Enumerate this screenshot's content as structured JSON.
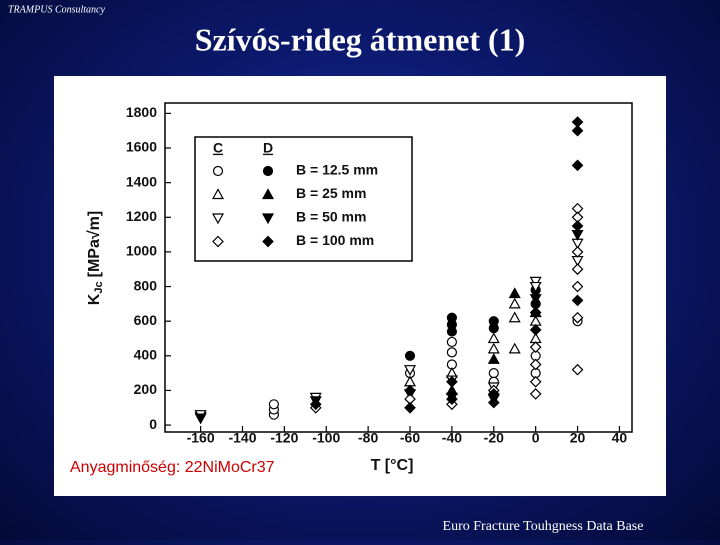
{
  "header": {
    "company": "TRAMPUS Consultancy",
    "title": "Szívós-rideg átmenet (1)"
  },
  "footer": "Euro Fracture Touhgness Data Base",
  "chart_data": {
    "type": "scatter",
    "annotation": "Anyagminőség: 22NiMoCr37",
    "xlabel": "T [°C]",
    "ylabel_main": "K",
    "ylabel_sub": "Jc",
    "ylabel_unit": "[MPa√m]",
    "xlim": [
      -177,
      46
    ],
    "ylim": [
      -40,
      1860
    ],
    "xticks": [
      -160,
      -140,
      -120,
      -100,
      -80,
      -60,
      -40,
      -20,
      0,
      20,
      40
    ],
    "yticks": [
      0,
      200,
      400,
      600,
      800,
      1000,
      1200,
      1400,
      1600,
      1800
    ],
    "color": "#000000",
    "legend_columns": [
      "C",
      "D"
    ],
    "series": [
      {
        "name": "B = 12.5 mm",
        "marker": "circle",
        "open": {
          "x": [
            -125,
            -125,
            -125,
            -60,
            -40,
            -40,
            -40,
            -20,
            -20,
            0,
            0,
            20
          ],
          "values": [
            60,
            90,
            120,
            300,
            480,
            420,
            350,
            300,
            250,
            400,
            300,
            600
          ]
        },
        "filled": {
          "x": [
            -60,
            -40,
            -40,
            -40,
            -20,
            -20,
            0,
            0
          ],
          "values": [
            400,
            620,
            580,
            540,
            600,
            560,
            780,
            700
          ]
        }
      },
      {
        "name": "B = 25 mm",
        "marker": "triangle-up",
        "open": {
          "x": [
            -60,
            -40,
            -20,
            -20,
            -10,
            -10,
            -10,
            0,
            0
          ],
          "values": [
            250,
            300,
            500,
            440,
            700,
            620,
            440,
            600,
            500
          ]
        },
        "filled": {
          "x": [
            -40,
            -20,
            -10,
            0
          ],
          "values": [
            200,
            380,
            760,
            650
          ]
        }
      },
      {
        "name": "B = 50 mm",
        "marker": "triangle-down",
        "open": {
          "x": [
            -160,
            -160,
            -105,
            -60,
            -40,
            -20,
            0,
            0,
            20,
            20
          ],
          "values": [
            50,
            60,
            160,
            320,
            260,
            220,
            830,
            800,
            1050,
            950
          ]
        },
        "filled": {
          "x": [
            -160,
            -105,
            -60,
            -40,
            -20,
            0,
            20
          ],
          "values": [
            40,
            140,
            180,
            160,
            150,
            730,
            1100
          ]
        }
      },
      {
        "name": "B = 100 mm",
        "marker": "diamond",
        "open": {
          "x": [
            -105,
            -60,
            -40,
            -20,
            0,
            0,
            0,
            0,
            20,
            20,
            20,
            20,
            20,
            20,
            20
          ],
          "values": [
            100,
            150,
            120,
            200,
            180,
            250,
            350,
            450,
            1250,
            1200,
            1000,
            900,
            800,
            620,
            320
          ]
        },
        "filled": {
          "x": [
            -105,
            -60,
            -60,
            -40,
            -40,
            -20,
            -20,
            0,
            0,
            20,
            20,
            20,
            20,
            20
          ],
          "values": [
            120,
            200,
            100,
            250,
            150,
            130,
            180,
            550,
            650,
            1750,
            1700,
            1500,
            1150,
            720
          ]
        }
      }
    ]
  }
}
